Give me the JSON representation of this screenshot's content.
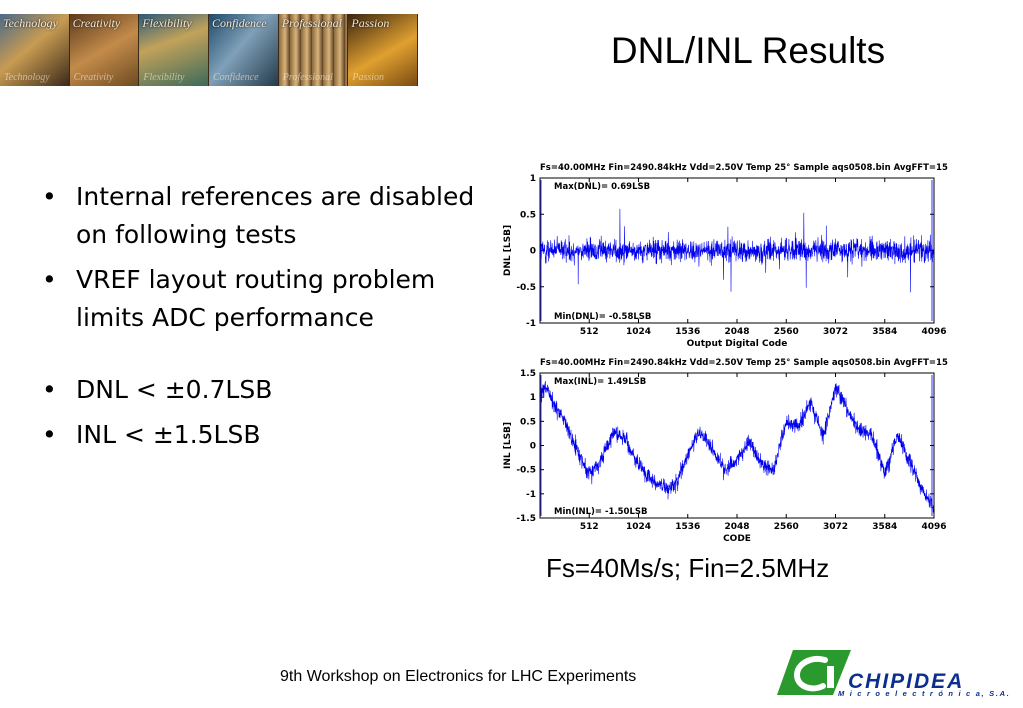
{
  "slide": {
    "title": "DNL/INL Results",
    "caption": "Fs=40Ms/s; Fin=2.5MHz",
    "footer": "9th Workshop on Electronics for LHC Experiments"
  },
  "banner": {
    "tiles": [
      "Technology",
      "Creativity",
      "Flexibility",
      "Confidence",
      "Professional",
      "Passion"
    ]
  },
  "bullets": [
    "Internal references are disabled on following tests",
    "VREF layout routing problem limits ADC performance",
    "DNL < ±0.7LSB",
    "INL < ±1.5LSB"
  ],
  "logo": {
    "name": "CHIPIDEA",
    "subtitle": "M i c r o e l e c t r ó n i c a, S.A.",
    "green": "#2a9a2e",
    "blue": "#0c2f8e"
  },
  "chart_data": [
    {
      "type": "line",
      "title": "Fs=40.00MHz  Fin=2490.84kHz  Vdd=2.50V  Temp 25°  Sample aqs0508.bin  AvgFFT=15",
      "xlabel": "Output Digital Code",
      "ylabel": "DNL [LSB]",
      "xlim": [
        0,
        4096
      ],
      "ylim": [
        -1,
        1
      ],
      "xticks": [
        512,
        1024,
        1536,
        2048,
        2560,
        3072,
        3584,
        4096
      ],
      "yticks": [
        1,
        0.5,
        0,
        -0.5,
        -1
      ],
      "annotations": [
        "Max(DNL)= 0.69LSB",
        "Min(DNL)= -0.58LSB"
      ],
      "summary": {
        "max": 0.69,
        "min": -0.58
      },
      "color": "#0000ee",
      "series": [
        {
          "x": [
            0,
            1,
            4095,
            4096
          ],
          "y": [
            0,
            0,
            0,
            0
          ]
        }
      ]
    },
    {
      "type": "line",
      "title": "Fs=40.00MHz  Fin=2490.84kHz  Vdd=2.50V  Temp 25°  Sample aqs0508.bin  AvgFFT=15",
      "xlabel": "CODE",
      "ylabel": "INL [LSB]",
      "xlim": [
        0,
        4096
      ],
      "ylim": [
        -1.5,
        1.5
      ],
      "xticks": [
        512,
        1024,
        1536,
        2048,
        2560,
        3072,
        3584,
        4096
      ],
      "yticks": [
        1.5,
        1,
        0.5,
        0,
        -0.5,
        -1,
        -1.5
      ],
      "annotations": [
        "Max(INL)= 1.49LSB",
        "Min(INL)= -1.50LSB"
      ],
      "summary": {
        "max": 1.49,
        "min": -1.5
      },
      "color": "#0000ee",
      "series": [
        {
          "x": [
            0,
            64,
            128,
            256,
            384,
            512,
            640,
            768,
            896,
            1024,
            1152,
            1280,
            1408,
            1536,
            1664,
            1792,
            1920,
            2048,
            2176,
            2304,
            2432,
            2560,
            2688,
            2816,
            2944,
            3072,
            3200,
            3328,
            3456,
            3584,
            3712,
            3840,
            3968,
            4096
          ],
          "y": [
            1.0,
            1.2,
            0.9,
            0.5,
            -0.1,
            -0.6,
            -0.3,
            0.3,
            0.1,
            -0.4,
            -0.7,
            -0.9,
            -0.8,
            -0.2,
            0.3,
            -0.1,
            -0.5,
            -0.3,
            0.1,
            -0.4,
            -0.5,
            0.5,
            0.4,
            0.9,
            0.2,
            1.2,
            0.7,
            0.3,
            0.2,
            -0.6,
            0.2,
            -0.3,
            -0.9,
            -1.3
          ]
        }
      ]
    }
  ]
}
